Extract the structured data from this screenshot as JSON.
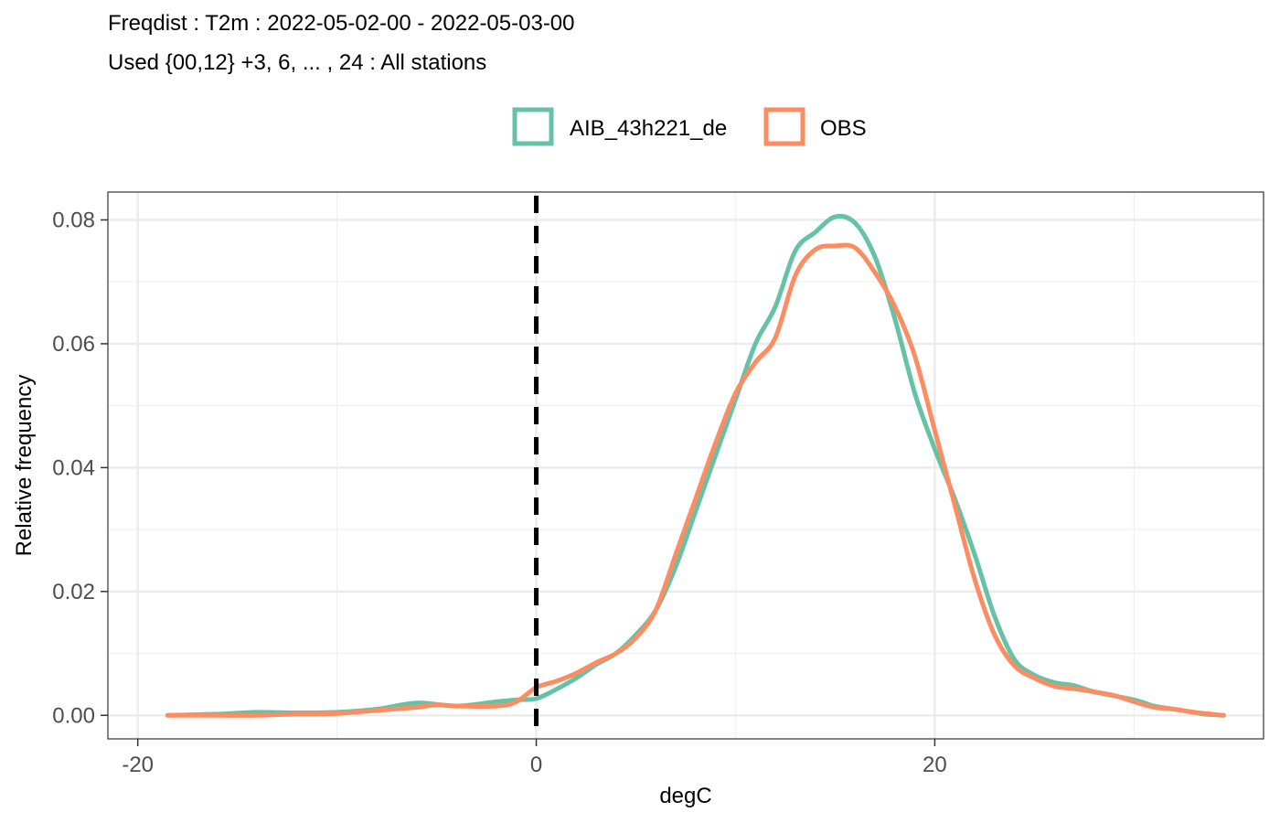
{
  "chart_data": {
    "type": "line",
    "title": "Freqdist : T2m : 2022-05-02-00 - 2022-05-03-00",
    "subtitle": "Used {00,12} +3, 6, ... , 24 : All stations",
    "xlabel": "degC",
    "ylabel": "Relative frequency",
    "xlim": [
      -21.5,
      36.5
    ],
    "ylim": [
      -0.0038,
      0.0845
    ],
    "x_ticks": [
      -20,
      0,
      20
    ],
    "x_tick_labels": [
      "-20",
      "0",
      "20"
    ],
    "y_ticks": [
      0,
      0.02,
      0.04,
      0.06,
      0.08
    ],
    "y_tick_labels": [
      "0.00",
      "0.02",
      "0.04",
      "0.06",
      "0.08"
    ],
    "grid": true,
    "legend_position": "top",
    "reference_line": {
      "x": 0,
      "style": "dashed",
      "color": "#000000"
    },
    "series": [
      {
        "name": "AIB_43h221_de",
        "color": "#66c2a5",
        "points": [
          [
            -18.5,
            0.0
          ],
          [
            -16,
            0.0002
          ],
          [
            -14,
            0.0005
          ],
          [
            -12,
            0.0004
          ],
          [
            -10,
            0.0005
          ],
          [
            -8,
            0.001
          ],
          [
            -6,
            0.002
          ],
          [
            -4,
            0.0015
          ],
          [
            -2,
            0.0022
          ],
          [
            -1,
            0.0025
          ],
          [
            0,
            0.0027
          ],
          [
            1,
            0.0042
          ],
          [
            2,
            0.006
          ],
          [
            3,
            0.0082
          ],
          [
            4,
            0.01
          ],
          [
            5,
            0.013
          ],
          [
            6,
            0.017
          ],
          [
            7,
            0.024
          ],
          [
            8,
            0.033
          ],
          [
            9,
            0.042
          ],
          [
            10,
            0.051
          ],
          [
            11,
            0.06
          ],
          [
            12,
            0.066
          ],
          [
            13,
            0.075
          ],
          [
            14,
            0.078
          ],
          [
            15,
            0.0805
          ],
          [
            16,
            0.0795
          ],
          [
            17,
            0.074
          ],
          [
            18,
            0.064
          ],
          [
            19,
            0.052
          ],
          [
            20,
            0.043
          ],
          [
            21,
            0.035
          ],
          [
            22,
            0.026
          ],
          [
            23,
            0.016
          ],
          [
            24,
            0.009
          ],
          [
            25,
            0.0065
          ],
          [
            26,
            0.0053
          ],
          [
            27,
            0.0048
          ],
          [
            28,
            0.0038
          ],
          [
            30,
            0.0025
          ],
          [
            31,
            0.0015
          ],
          [
            32,
            0.001
          ],
          [
            33,
            0.0005
          ],
          [
            33.5,
            0.0002
          ],
          [
            34.5,
            0.0
          ]
        ]
      },
      {
        "name": "OBS",
        "color": "#fc8d62",
        "points": [
          [
            -18.5,
            0.0
          ],
          [
            -16,
            0.0
          ],
          [
            -14,
            0.0
          ],
          [
            -12,
            0.0002
          ],
          [
            -10,
            0.0003
          ],
          [
            -8,
            0.0008
          ],
          [
            -6,
            0.0013
          ],
          [
            -5,
            0.0017
          ],
          [
            -4,
            0.0015
          ],
          [
            -2,
            0.0015
          ],
          [
            -1,
            0.0022
          ],
          [
            0,
            0.0045
          ],
          [
            1,
            0.0055
          ],
          [
            2,
            0.0068
          ],
          [
            3,
            0.0085
          ],
          [
            4,
            0.01
          ],
          [
            5,
            0.0125
          ],
          [
            6,
            0.017
          ],
          [
            7,
            0.026
          ],
          [
            8,
            0.035
          ],
          [
            9,
            0.044
          ],
          [
            10,
            0.052
          ],
          [
            11,
            0.057
          ],
          [
            12,
            0.061
          ],
          [
            13,
            0.071
          ],
          [
            14,
            0.0752
          ],
          [
            15,
            0.0758
          ],
          [
            16,
            0.0755
          ],
          [
            17,
            0.0715
          ],
          [
            18,
            0.066
          ],
          [
            19,
            0.058
          ],
          [
            20,
            0.046
          ],
          [
            21,
            0.034
          ],
          [
            22,
            0.022
          ],
          [
            23,
            0.013
          ],
          [
            24,
            0.008
          ],
          [
            25,
            0.006
          ],
          [
            26,
            0.0047
          ],
          [
            27,
            0.0043
          ],
          [
            28,
            0.0038
          ],
          [
            29,
            0.0032
          ],
          [
            30,
            0.0022
          ],
          [
            31,
            0.0013
          ],
          [
            32,
            0.001
          ],
          [
            33,
            0.0005
          ],
          [
            34.5,
            0.0
          ]
        ]
      }
    ]
  }
}
